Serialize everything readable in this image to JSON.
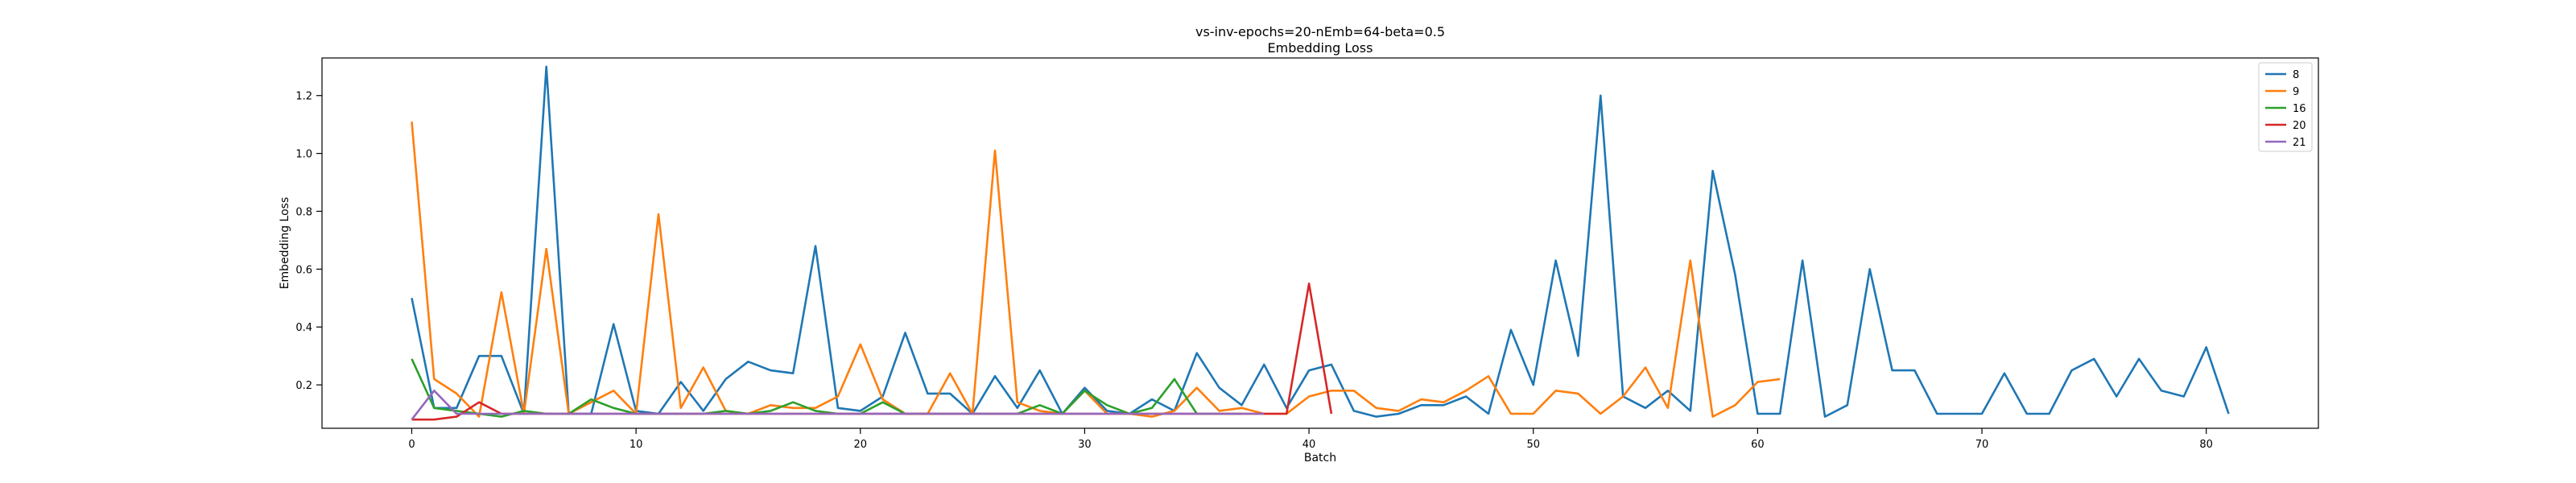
{
  "chart_data": {
    "type": "line",
    "title": "vs-inv-epochs=20-nEmb=64-beta=0.5",
    "subtitle": "Embedding Loss",
    "xlabel": "Batch",
    "ylabel": "Embedding Loss",
    "xlim": [
      -4,
      85
    ],
    "ylim": [
      0.05,
      1.33
    ],
    "xticks": [
      0,
      10,
      20,
      30,
      40,
      50,
      60,
      70,
      80
    ],
    "yticks": [
      0.2,
      0.4,
      0.6,
      0.8,
      1.0,
      1.2
    ],
    "ytick_labels": [
      "0.2",
      "0.4",
      "0.6",
      "0.8",
      "1.0",
      "1.2"
    ],
    "grid": false,
    "legend_position": "top-right",
    "series": [
      {
        "name": "8",
        "color": "#1f77b4",
        "values": [
          0.5,
          0.12,
          0.12,
          0.3,
          0.3,
          0.1,
          1.3,
          0.1,
          0.1,
          0.41,
          0.11,
          0.1,
          0.21,
          0.11,
          0.22,
          0.28,
          0.25,
          0.24,
          0.68,
          0.12,
          0.11,
          0.16,
          0.38,
          0.17,
          0.17,
          0.1,
          0.23,
          0.12,
          0.25,
          0.1,
          0.19,
          0.11,
          0.1,
          0.15,
          0.11,
          0.31,
          0.19,
          0.13,
          0.27,
          0.12,
          0.25,
          0.27,
          0.11,
          0.09,
          0.1,
          0.13,
          0.13,
          0.16,
          0.1,
          0.39,
          0.2,
          0.63,
          0.3,
          1.2,
          0.16,
          0.12,
          0.18,
          0.11,
          0.94,
          0.58,
          0.1,
          0.1,
          0.63,
          0.09,
          0.13,
          0.6,
          0.25,
          0.25,
          0.1,
          0.1,
          0.1,
          0.24,
          0.1,
          0.1,
          0.25,
          0.29,
          0.16,
          0.29,
          0.18,
          0.16,
          0.33,
          0.1
        ]
      },
      {
        "name": "9",
        "color": "#ff7f0e",
        "values": [
          1.11,
          0.22,
          0.17,
          0.09,
          0.52,
          0.1,
          0.67,
          0.1,
          0.14,
          0.18,
          0.1,
          0.79,
          0.12,
          0.26,
          0.11,
          0.1,
          0.13,
          0.12,
          0.12,
          0.16,
          0.34,
          0.15,
          0.1,
          0.1,
          0.24,
          0.1,
          1.01,
          0.14,
          0.11,
          0.1,
          0.18,
          0.1,
          0.1,
          0.09,
          0.11,
          0.19,
          0.11,
          0.12,
          0.1,
          0.1,
          0.16,
          0.18,
          0.18,
          0.12,
          0.11,
          0.15,
          0.14,
          0.18,
          0.23,
          0.1,
          0.1,
          0.18,
          0.17,
          0.1,
          0.16,
          0.26,
          0.12,
          0.63,
          0.09,
          0.13,
          0.21,
          0.22
        ]
      },
      {
        "name": "16",
        "color": "#2ca02c",
        "values": [
          0.29,
          0.12,
          0.11,
          0.1,
          0.09,
          0.11,
          0.1,
          0.1,
          0.15,
          0.12,
          0.1,
          0.1,
          0.1,
          0.1,
          0.11,
          0.1,
          0.11,
          0.14,
          0.11,
          0.1,
          0.1,
          0.14,
          0.1,
          0.1,
          0.1,
          0.1,
          0.1,
          0.1,
          0.13,
          0.1,
          0.18,
          0.13,
          0.1,
          0.12,
          0.22,
          0.1,
          0.1,
          0.1
        ]
      },
      {
        "name": "20",
        "color": "#d62728",
        "values": [
          0.08,
          0.08,
          0.09,
          0.14,
          0.1,
          0.1,
          0.1,
          0.1,
          0.1,
          0.1,
          0.1,
          0.1,
          0.1,
          0.1,
          0.1,
          0.1,
          0.1,
          0.1,
          0.1,
          0.1,
          0.1,
          0.1,
          0.1,
          0.1,
          0.1,
          0.1,
          0.1,
          0.1,
          0.1,
          0.1,
          0.1,
          0.1,
          0.1,
          0.1,
          0.1,
          0.1,
          0.1,
          0.1,
          0.1,
          0.1,
          0.55,
          0.1
        ]
      },
      {
        "name": "21",
        "color": "#9467bd",
        "values": [
          0.08,
          0.18,
          0.1,
          0.1,
          0.1,
          0.1,
          0.1,
          0.1,
          0.1,
          0.1,
          0.1,
          0.1,
          0.1,
          0.1,
          0.1,
          0.1,
          0.1,
          0.1,
          0.1,
          0.1,
          0.1,
          0.1,
          0.1,
          0.1,
          0.1,
          0.1,
          0.1,
          0.1,
          0.1,
          0.1,
          0.1,
          0.1,
          0.1,
          0.1,
          0.1,
          0.1,
          0.1,
          0.1,
          0.1
        ]
      }
    ]
  }
}
